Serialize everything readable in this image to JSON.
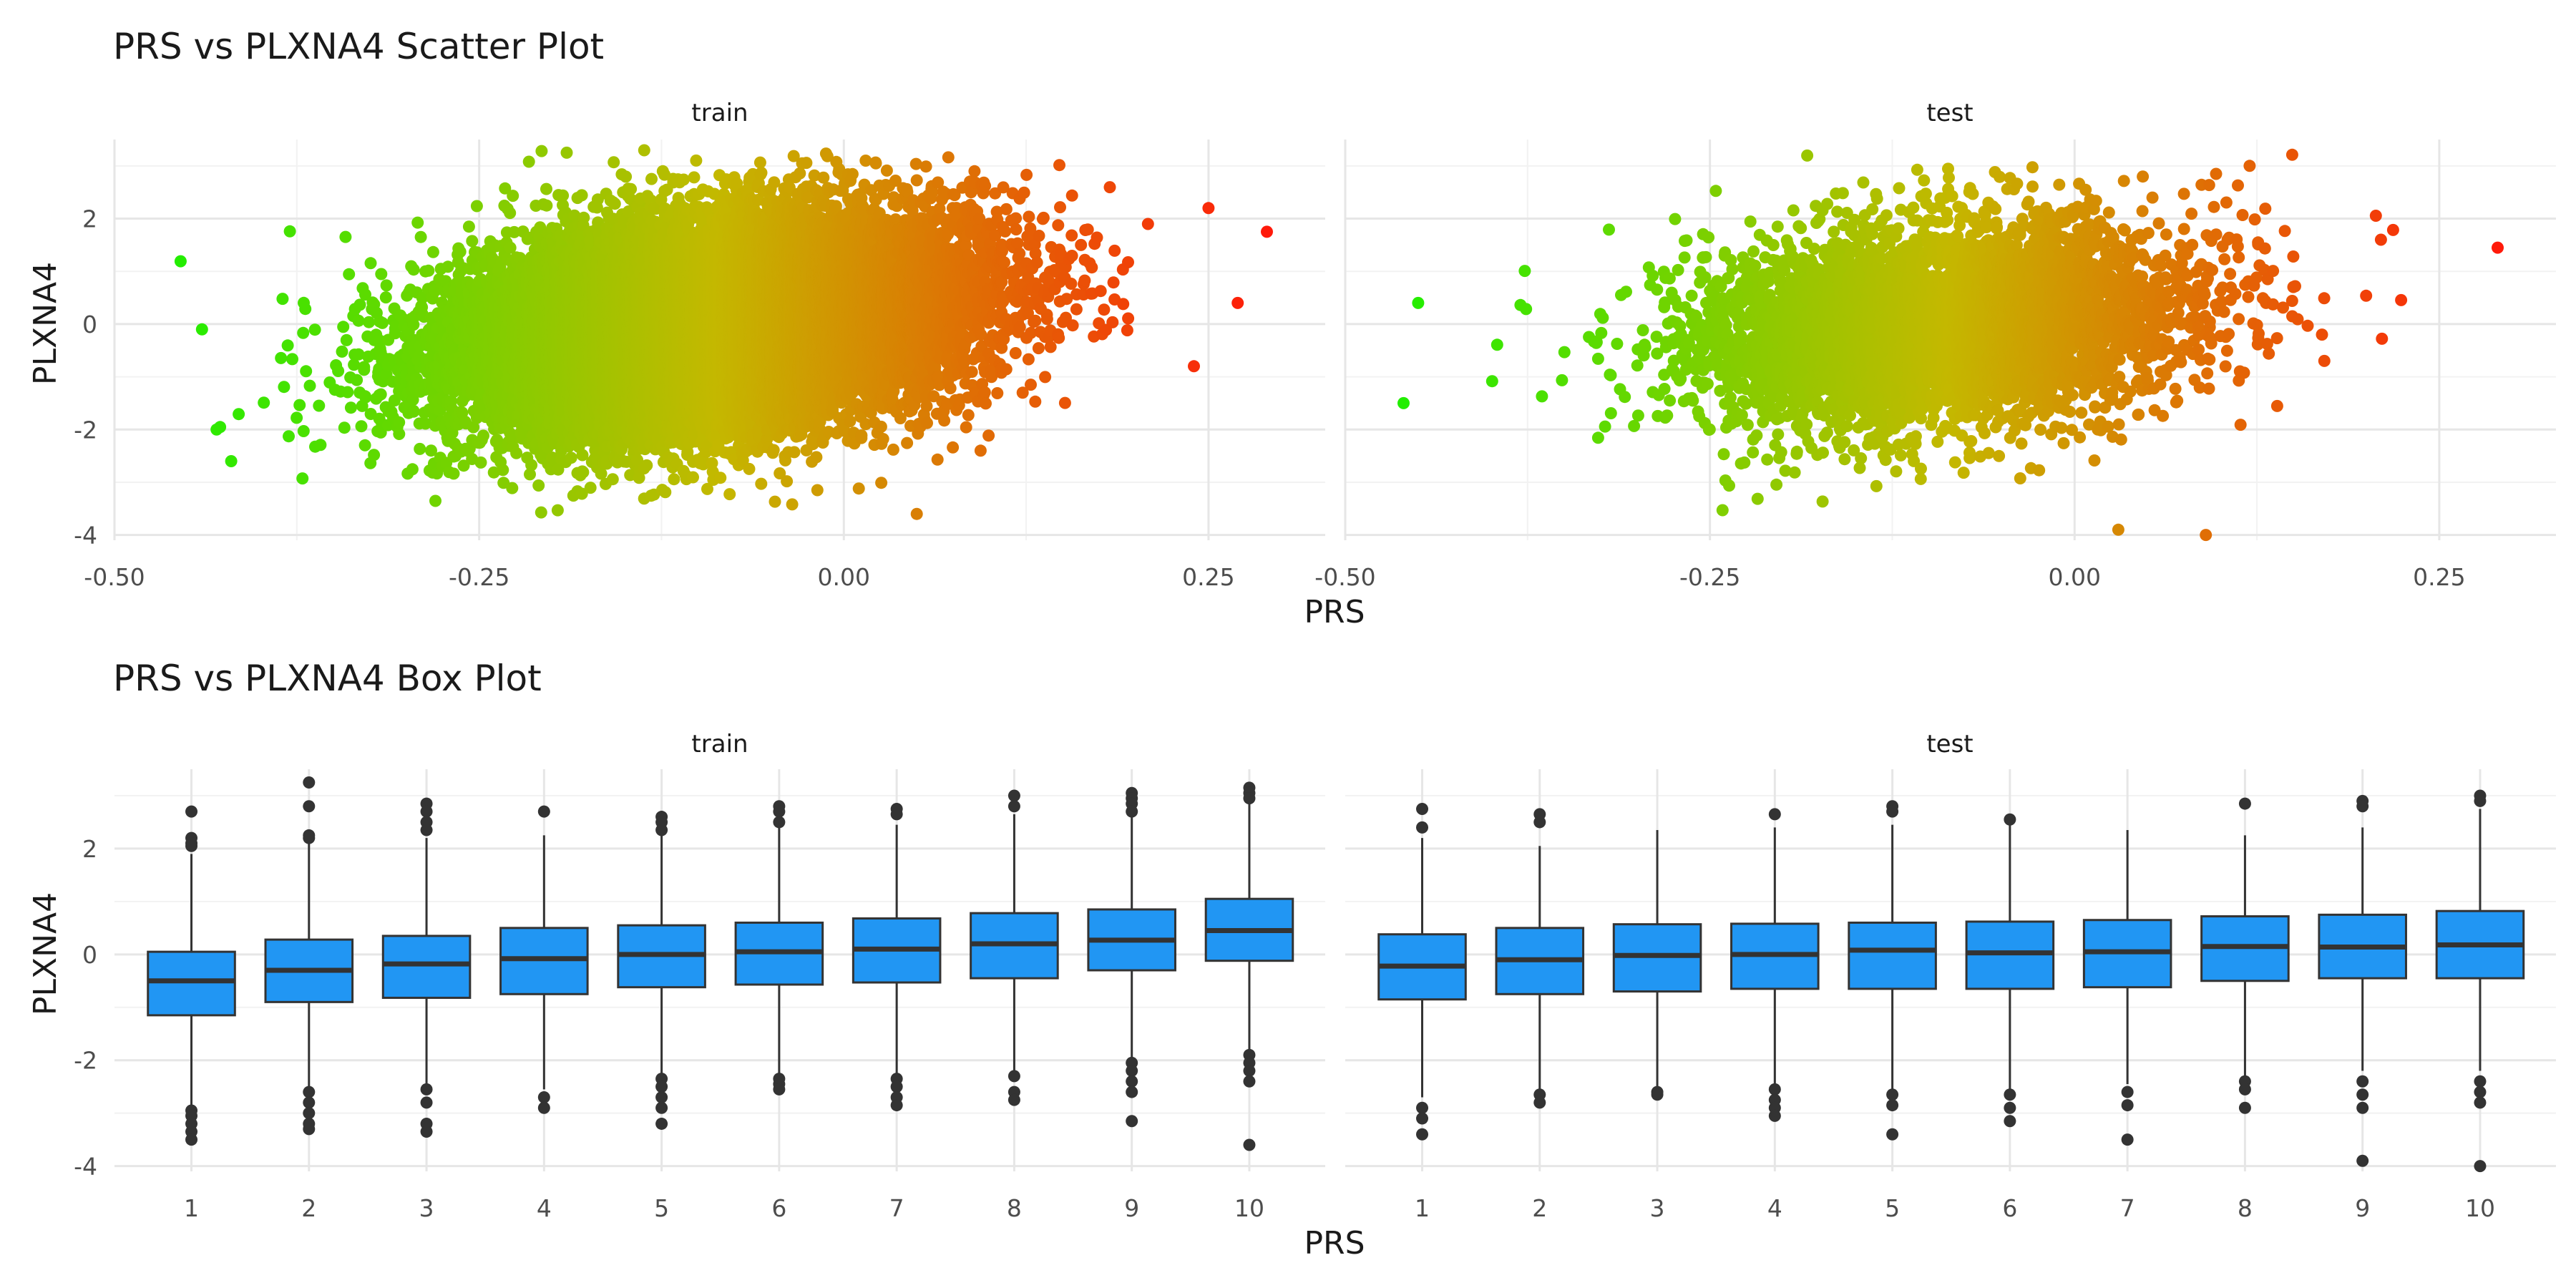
{
  "chart_data": [
    {
      "type": "scatter",
      "title": "PRS vs PLXNA4 Scatter Plot",
      "xlabel": "PRS",
      "ylabel": "PLXNA4",
      "facets": [
        "train",
        "test"
      ],
      "xlim": [
        -0.5,
        0.33
      ],
      "ylim": [
        -4.1,
        3.5
      ],
      "x_ticks": [
        "-0.50",
        "-0.25",
        "0.00",
        "0.25"
      ],
      "y_ticks": [
        "2",
        "0",
        "-2",
        "-4"
      ],
      "y_tick_values": [
        2,
        0,
        -2,
        -4
      ],
      "x_tick_values": [
        -0.5,
        -0.25,
        0.0,
        0.25
      ],
      "grid": true,
      "color_scale": {
        "low": "#22ee00",
        "mid": "#c4b800",
        "high": "#ff1a0a",
        "encodes": "PRS"
      },
      "panels": {
        "train": {
          "n_points_approx": 20000,
          "prs_mean": -0.09,
          "prs_sd": 0.085,
          "plxna4_intercept": 0.0,
          "plxna4_slope_per_prs": 3.0,
          "plxna4_sd": 0.95,
          "notable_points": [
            {
              "x": 0.29,
              "y": 1.75
            },
            {
              "x": 0.25,
              "y": 2.2
            },
            {
              "x": 0.27,
              "y": 0.4
            },
            {
              "x": 0.24,
              "y": -0.8
            },
            {
              "x": -0.44,
              "y": -0.1
            },
            {
              "x": -0.43,
              "y": -2.0
            },
            {
              "x": -0.42,
              "y": -2.6
            },
            {
              "x": -0.19,
              "y": 3.25
            },
            {
              "x": 0.05,
              "y": -3.6
            }
          ]
        },
        "test": {
          "n_points_approx": 5000,
          "prs_mean": -0.09,
          "prs_sd": 0.085,
          "plxna4_intercept": 0.0,
          "plxna4_slope_per_prs": 2.4,
          "plxna4_sd": 0.95,
          "notable_points": [
            {
              "x": 0.29,
              "y": 1.45
            },
            {
              "x": -0.46,
              "y": -1.5
            },
            {
              "x": -0.45,
              "y": 0.4
            },
            {
              "x": 0.09,
              "y": -4.0
            },
            {
              "x": 0.03,
              "y": -3.9
            },
            {
              "x": 0.21,
              "y": 1.6
            },
            {
              "x": 0.12,
              "y": 3.0
            }
          ]
        }
      }
    },
    {
      "type": "box",
      "title": "PRS vs PLXNA4 Box Plot",
      "xlabel": "PRS",
      "ylabel": "PLXNA4",
      "facets": [
        "train",
        "test"
      ],
      "categories": [
        "1",
        "2",
        "3",
        "4",
        "5",
        "6",
        "7",
        "8",
        "9",
        "10"
      ],
      "ylim": [
        -4.1,
        3.5
      ],
      "y_ticks": [
        "2",
        "0",
        "-2",
        "-4"
      ],
      "y_tick_values": [
        2,
        0,
        -2,
        -4
      ],
      "box_color": "#2196f3",
      "panels": {
        "train": {
          "q1": [
            -1.15,
            -0.9,
            -0.82,
            -0.75,
            -0.62,
            -0.57,
            -0.53,
            -0.45,
            -0.3,
            -0.12
          ],
          "median": [
            -0.5,
            -0.3,
            -0.18,
            -0.08,
            0.0,
            0.05,
            0.1,
            0.2,
            0.27,
            0.45
          ],
          "q3": [
            0.05,
            0.28,
            0.35,
            0.5,
            0.55,
            0.6,
            0.68,
            0.78,
            0.85,
            1.05
          ],
          "whisker_low": [
            -2.85,
            -2.5,
            -2.45,
            -2.55,
            -2.3,
            -2.3,
            -2.3,
            -2.2,
            -2.0,
            -1.85
          ],
          "whisker_high": [
            1.9,
            2.1,
            2.2,
            2.25,
            2.25,
            2.4,
            2.45,
            2.65,
            2.75,
            2.95
          ],
          "outliers": [
            [
              2.7,
              2.2,
              2.1,
              2.05,
              -2.95,
              -3.05,
              -3.2,
              -3.35,
              -3.5
            ],
            [
              3.25,
              2.8,
              2.25,
              2.2,
              -2.6,
              -2.8,
              -3.0,
              -3.2,
              -3.3
            ],
            [
              2.85,
              2.7,
              2.5,
              2.35,
              -2.55,
              -2.8,
              -3.2,
              -3.35
            ],
            [
              2.7,
              -2.7,
              -2.9
            ],
            [
              2.6,
              2.5,
              2.35,
              -2.35,
              -2.5,
              -2.7,
              -2.9,
              -3.2
            ],
            [
              2.8,
              2.7,
              2.5,
              -2.35,
              -2.45,
              -2.55
            ],
            [
              2.75,
              2.65,
              -2.35,
              -2.5,
              -2.7,
              -2.85
            ],
            [
              3.0,
              2.8,
              -2.3,
              -2.6,
              -2.75
            ],
            [
              3.05,
              2.95,
              2.85,
              2.7,
              -2.05,
              -2.2,
              -2.4,
              -2.6,
              -3.15
            ],
            [
              3.15,
              3.05,
              2.95,
              -1.9,
              -2.05,
              -2.2,
              -2.4,
              -3.6
            ]
          ]
        },
        "test": {
          "q1": [
            -0.85,
            -0.75,
            -0.7,
            -0.65,
            -0.65,
            -0.65,
            -0.62,
            -0.5,
            -0.45,
            -0.45
          ],
          "median": [
            -0.22,
            -0.1,
            -0.02,
            0.0,
            0.08,
            0.03,
            0.05,
            0.15,
            0.14,
            0.18
          ],
          "q3": [
            0.38,
            0.5,
            0.57,
            0.58,
            0.6,
            0.62,
            0.65,
            0.72,
            0.75,
            0.82
          ],
          "whisker_low": [
            -2.7,
            -2.55,
            -2.55,
            -2.45,
            -2.55,
            -2.55,
            -2.45,
            -2.3,
            -2.2,
            -2.2
          ],
          "whisker_high": [
            2.2,
            2.05,
            2.35,
            2.4,
            2.45,
            2.45,
            2.35,
            2.25,
            2.4,
            2.75
          ],
          "outliers": [
            [
              2.75,
              2.4,
              -2.9,
              -3.1,
              -3.4
            ],
            [
              2.65,
              2.5,
              -2.65,
              -2.8
            ],
            [
              -2.6,
              -2.65
            ],
            [
              2.65,
              -2.55,
              -2.75,
              -2.9,
              -3.05
            ],
            [
              2.8,
              2.7,
              -2.65,
              -2.85,
              -3.4
            ],
            [
              2.55,
              -2.65,
              -2.9,
              -3.15
            ],
            [
              -2.6,
              -2.85,
              -3.5
            ],
            [
              2.85,
              -2.4,
              -2.55,
              -2.9
            ],
            [
              2.9,
              2.8,
              -2.4,
              -2.65,
              -2.9,
              -3.9
            ],
            [
              3.0,
              2.9,
              -2.4,
              -2.6,
              -2.8,
              -4.0
            ]
          ]
        }
      }
    }
  ]
}
